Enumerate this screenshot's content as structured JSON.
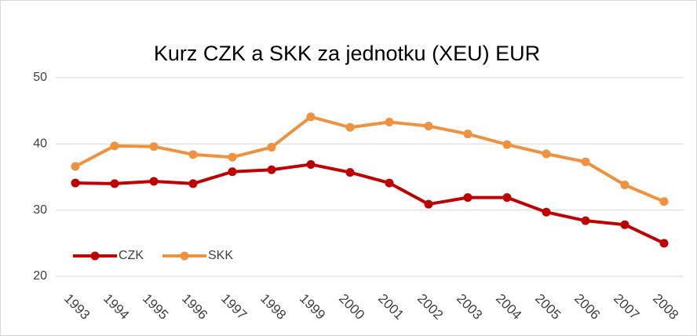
{
  "chart_data": {
    "type": "line",
    "title": "Kurz CZK a SKK za jednotku (XEU) EUR",
    "categories": [
      "1993",
      "1994",
      "1995",
      "1996",
      "1997",
      "1998",
      "1999",
      "2000",
      "2001",
      "2002",
      "2003",
      "2004",
      "2005",
      "2006",
      "2007",
      "2008"
    ],
    "series": [
      {
        "name": "CZK",
        "color": "#c00000",
        "values": [
          34.1,
          34.0,
          34.35,
          34.0,
          35.8,
          36.1,
          36.9,
          35.7,
          34.1,
          30.9,
          31.9,
          31.9,
          29.7,
          28.4,
          27.8,
          25.0
        ]
      },
      {
        "name": "SKK",
        "color": "#f0913e",
        "values": [
          36.6,
          39.7,
          39.6,
          38.4,
          38.0,
          39.5,
          44.1,
          42.5,
          43.3,
          42.7,
          41.5,
          39.9,
          38.5,
          37.3,
          33.8,
          31.3
        ]
      }
    ],
    "ylim": [
      20,
      50
    ],
    "yticks": [
      20,
      30,
      40,
      50
    ],
    "grid": true,
    "legend": "bottom-left"
  }
}
